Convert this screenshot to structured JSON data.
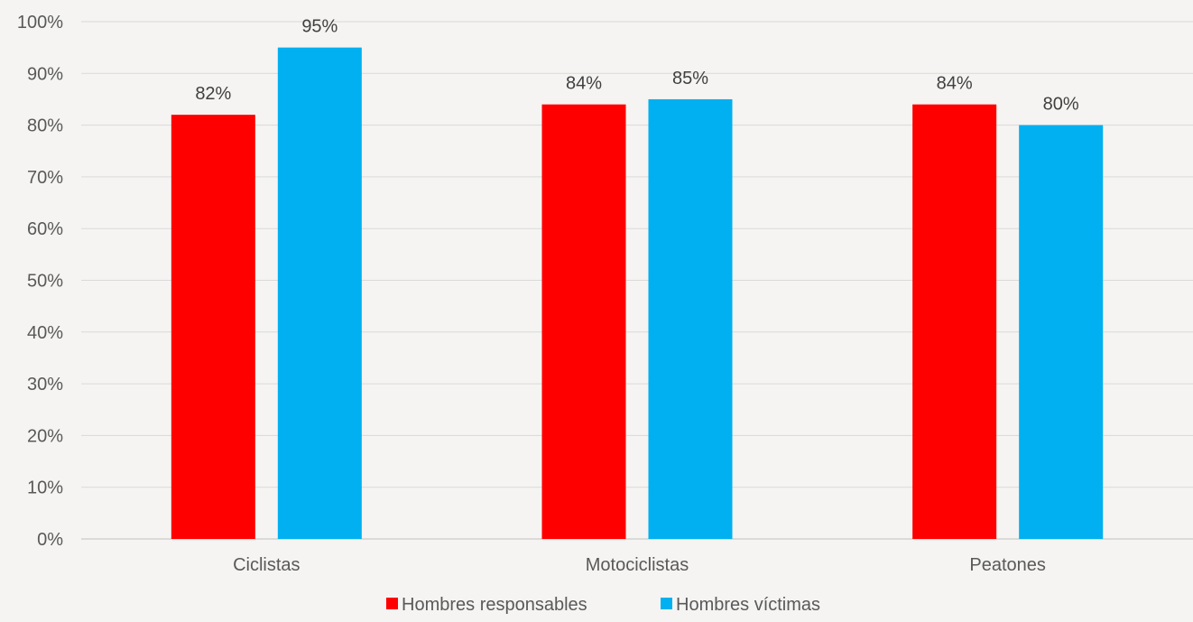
{
  "colors": {
    "background": "#f5f4f2",
    "gridline": "#d9d9d9",
    "axis": "#bfbfbf"
  },
  "chart_data": {
    "type": "bar",
    "categories": [
      "Ciclistas",
      "Motociclistas",
      "Peatones"
    ],
    "series": [
      {
        "name": "Hombres responsables",
        "color": "#ff0000",
        "values": [
          82,
          84,
          84
        ],
        "labels": [
          "82%",
          "84%",
          "84%"
        ]
      },
      {
        "name": "Hombres víctimas",
        "color": "#00b0f0",
        "values": [
          95,
          85,
          80
        ],
        "labels": [
          "95%",
          "85%",
          "80%"
        ]
      }
    ],
    "ylim": [
      0,
      100
    ],
    "ytick_labels": [
      "0%",
      "10%",
      "20%",
      "30%",
      "40%",
      "50%",
      "60%",
      "70%",
      "80%",
      "90%",
      "100%"
    ],
    "grid": true,
    "legend_position": "bottom"
  }
}
